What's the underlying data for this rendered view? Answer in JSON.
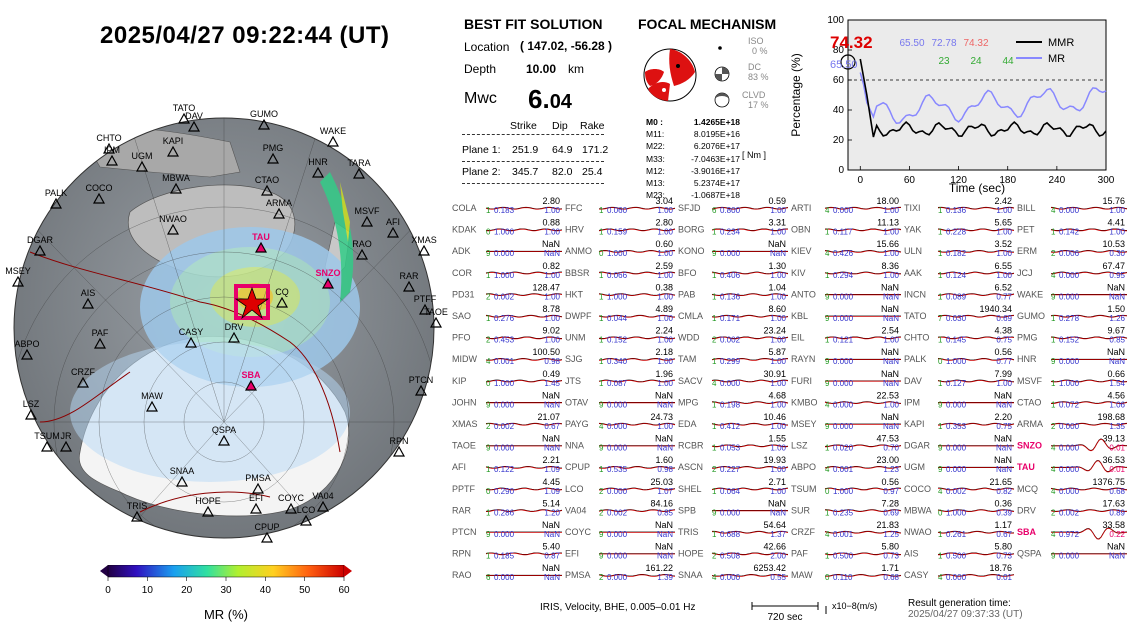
{
  "header": {
    "datetime": "2025/04/27  09:22:44 (UT)"
  },
  "solution": {
    "title": "BEST FIT SOLUTION",
    "location_label": "Location",
    "location_value": "( 147.02,  -56.28 )",
    "depth_label": "Depth",
    "depth_value": "10.00",
    "depth_unit": "km",
    "mw_label": "Mwc",
    "mw_int": "6.",
    "mw_dec": "04",
    "cols": [
      "Strike",
      "Dip",
      "Rake"
    ],
    "plane1": {
      "label": "Plane 1:",
      "strike": "251.9",
      "dip": "64.9",
      "rake": "171.2"
    },
    "plane2": {
      "label": "Plane 2:",
      "strike": "345.7",
      "dip": "82.0",
      "rake": "25.4"
    }
  },
  "focal": {
    "title": "FOCAL MECHANISM",
    "iso_label": "ISO",
    "iso_value": "0 %",
    "dc_label": "DC",
    "dc_value": "83 %",
    "clvd_label": "CLVD",
    "clvd_value": "17 %",
    "tensor": [
      {
        "k": "M0 :",
        "v": "1.4265E+18"
      },
      {
        "k": "M11:",
        "v": "8.0195E+16"
      },
      {
        "k": "M22:",
        "v": "6.2076E+17"
      },
      {
        "k": "M33:",
        "v": "-7.0463E+17"
      },
      {
        "k": "M12:",
        "v": "-3.9016E+17"
      },
      {
        "k": "M13:",
        "v": "5.2374E+17"
      },
      {
        "k": "M23:",
        "v": "-1.0687E+18"
      }
    ],
    "unit": "[ Nm ]"
  },
  "mr_chart": {
    "peak_value": "74.32",
    "left_value": "65.50",
    "stats": [
      {
        "top": "65.50",
        "bottom": "",
        "color": "#7777ee"
      },
      {
        "top": "72.78",
        "bottom": "23",
        "color": "#7777ee",
        "bcolor": "#33aa33"
      },
      {
        "top": "74.32",
        "bottom": "24",
        "color": "#ee6666",
        "bcolor": "#33aa33"
      },
      {
        "top": "",
        "bottom": "44",
        "color": "#ee6666",
        "bcolor": "#33aa33"
      }
    ],
    "legend": [
      {
        "name": "MMR",
        "color": "#000000"
      },
      {
        "name": "MR",
        "color": "#8888ff"
      }
    ],
    "xlabel": "Time (sec)",
    "ylabel": "Percentage (%)",
    "xticks": [
      "0",
      "60",
      "120",
      "180",
      "240",
      "300"
    ],
    "yticks": [
      "0",
      "20",
      "40",
      "60",
      "80",
      "100"
    ]
  },
  "map": {
    "stations": [
      {
        "n": "TATO",
        "c": "k"
      },
      {
        "n": "DAV",
        "c": "k"
      },
      {
        "n": "GUMO",
        "c": "k"
      },
      {
        "n": "CHTO",
        "c": "k"
      },
      {
        "n": "KAPI",
        "c": "k"
      },
      {
        "n": "IPM",
        "c": "k"
      },
      {
        "n": "UGM",
        "c": "k"
      },
      {
        "n": "WAKE",
        "c": "k"
      },
      {
        "n": "PMG",
        "c": "k"
      },
      {
        "n": "HNR",
        "c": "k"
      },
      {
        "n": "TARA",
        "c": "k"
      },
      {
        "n": "PALK",
        "c": "k"
      },
      {
        "n": "COCO",
        "c": "k"
      },
      {
        "n": "MBWA",
        "c": "k"
      },
      {
        "n": "CTAO",
        "c": "k"
      },
      {
        "n": "NWAO",
        "c": "k"
      },
      {
        "n": "ARMA",
        "c": "k"
      },
      {
        "n": "MSVF",
        "c": "k"
      },
      {
        "n": "AFI",
        "c": "k"
      },
      {
        "n": "DGAR",
        "c": "k"
      },
      {
        "n": "TAU",
        "c": "r"
      },
      {
        "n": "RAO",
        "c": "k"
      },
      {
        "n": "XMAS",
        "c": "k"
      },
      {
        "n": "SNZO",
        "c": "r"
      },
      {
        "n": "RAR",
        "c": "k"
      },
      {
        "n": "MSEY",
        "c": "k"
      },
      {
        "n": "AIS",
        "c": "k"
      },
      {
        "n": "CQ",
        "c": "k"
      },
      {
        "n": "PTFF",
        "c": "k"
      },
      {
        "n": "TAOE",
        "c": "k"
      },
      {
        "n": "PAF",
        "c": "k"
      },
      {
        "n": "CASY",
        "c": "k"
      },
      {
        "n": "DRV",
        "c": "k"
      },
      {
        "n": "ABPO",
        "c": "k"
      },
      {
        "n": "CRZF",
        "c": "k"
      },
      {
        "n": "SBA",
        "c": "r"
      },
      {
        "n": "MAW",
        "c": "k"
      },
      {
        "n": "LSZ",
        "c": "k"
      },
      {
        "n": "PTCN",
        "c": "k"
      },
      {
        "n": "QSPA",
        "c": "k"
      },
      {
        "n": "TSUM",
        "c": "k"
      },
      {
        "n": "JR",
        "c": "k"
      },
      {
        "n": "RPN",
        "c": "k"
      },
      {
        "n": "SNAA",
        "c": "k"
      },
      {
        "n": "PMSA",
        "c": "k"
      },
      {
        "n": "TRIS",
        "c": "k"
      },
      {
        "n": "HOPE",
        "c": "k"
      },
      {
        "n": "EFI",
        "c": "k"
      },
      {
        "n": "COYC",
        "c": "k"
      },
      {
        "n": "VA04",
        "c": "k"
      },
      {
        "n": "LCO",
        "c": "k"
      },
      {
        "n": "CPUP",
        "c": "k"
      }
    ]
  },
  "colorbar": {
    "ticks": [
      "0",
      "10",
      "20",
      "30",
      "40",
      "50",
      "60"
    ],
    "label": "MR (%)"
  },
  "waveforms": {
    "columns": [
      [
        [
          "COLA",
          "2.80",
          "1",
          "0.183",
          "1.00"
        ],
        [
          "KDAK",
          "0.88",
          "0",
          "1.000",
          "1.00"
        ],
        [
          "ADK",
          "NaN",
          "9",
          "0.000",
          "NaN"
        ],
        [
          "COR",
          "0.82",
          "1",
          "1.000",
          "1.00"
        ],
        [
          "PD31",
          "128.47",
          "2",
          "0.002",
          "1.00"
        ],
        [
          "SAO",
          "8.78",
          "1",
          "0.276",
          "1.00"
        ],
        [
          "PFO",
          "9.02",
          "2",
          "0.453",
          "1.00"
        ],
        [
          "MIDW",
          "100.50",
          "4",
          "0.001",
          "0.98"
        ],
        [
          "KIP",
          "0.49",
          "0",
          "1.000",
          "1.45"
        ],
        [
          "JOHN",
          "NaN",
          "9",
          "0.000",
          "NaN"
        ],
        [
          "XMAS",
          "21.07",
          "2",
          "0.002",
          "0.67"
        ],
        [
          "TAOE",
          "NaN",
          "9",
          "0.000",
          "NaN"
        ],
        [
          "AFI",
          "2.21",
          "1",
          "0.122",
          "1.09"
        ],
        [
          "PPTF",
          "4.45",
          "0",
          "0.290",
          "1.09"
        ],
        [
          "RAR",
          "5.14",
          "1",
          "0.286",
          "1.20"
        ],
        [
          "PTCN",
          "NaN",
          "9",
          "0.000",
          "NaN"
        ],
        [
          "RPN",
          "5.40",
          "1",
          "0.185",
          "0.87"
        ],
        [
          "RAO",
          "NaN",
          "6",
          "0.000",
          "NaN"
        ]
      ],
      [
        [
          "FFC",
          "3.04",
          "1",
          "0.060",
          "1.00"
        ],
        [
          "HRV",
          "2.80",
          "1",
          "0.159",
          "1.00"
        ],
        [
          "ANMO",
          "0.60",
          "0",
          "1.000",
          "1.00"
        ],
        [
          "BBSR",
          "2.59",
          "1",
          "0.066",
          "1.00"
        ],
        [
          "HKT",
          "0.38",
          "1",
          "1.000",
          "1.00"
        ],
        [
          "DWPF",
          "4.89",
          "1",
          "0.044",
          "1.00"
        ],
        [
          "UNM",
          "2.24",
          "1",
          "0.152",
          "1.00"
        ],
        [
          "SJG",
          "2.18",
          "1",
          "0.340",
          "1.00"
        ],
        [
          "JTS",
          "1.96",
          "1",
          "0.087",
          "1.00"
        ],
        [
          "OTAV",
          "NaN",
          "9",
          "0.000",
          "NaN"
        ],
        [
          "PAYG",
          "24.73",
          "4",
          "0.000",
          "1.00"
        ],
        [
          "NNA",
          "NaN",
          "9",
          "0.000",
          "NaN"
        ],
        [
          "CPUP",
          "1.60",
          "1",
          "0.535",
          "0.98"
        ],
        [
          "LCO",
          "25.03",
          "2",
          "0.000",
          "1.07"
        ],
        [
          "VA04",
          "84.16",
          "2",
          "0.002",
          "0.85"
        ],
        [
          "COYC",
          "NaN",
          "9",
          "0.000",
          "NaN"
        ],
        [
          "EFI",
          "NaN",
          "9",
          "0.000",
          "NaN"
        ],
        [
          "PMSA",
          "161.22",
          "2",
          "0.000",
          "1.39"
        ]
      ],
      [
        [
          "SFJD",
          "0.59",
          "6",
          "0.800",
          "1.00"
        ],
        [
          "BORG",
          "3.31",
          "1",
          "0.234",
          "1.00"
        ],
        [
          "KONO",
          "NaN",
          "9",
          "0.000",
          "NaN"
        ],
        [
          "BFO",
          "1.30",
          "1",
          "0.406",
          "1.00"
        ],
        [
          "PAB",
          "1.04",
          "1",
          "0.136",
          "1.00"
        ],
        [
          "CMLA",
          "8.60",
          "1",
          "0.171",
          "1.00"
        ],
        [
          "WDD",
          "23.24",
          "2",
          "0.002",
          "1.00"
        ],
        [
          "TAM",
          "5.87",
          "1",
          "0.299",
          "1.00"
        ],
        [
          "SACV",
          "30.91",
          "4",
          "0.000",
          "1.00"
        ],
        [
          "MPG",
          "4.68",
          "1",
          "0.198",
          "1.00"
        ],
        [
          "EDA",
          "10.46",
          "1",
          "0.412",
          "1.00"
        ],
        [
          "RCBR",
          "1.55",
          "1",
          "0.053",
          "1.00"
        ],
        [
          "ASCN",
          "19.93",
          "2",
          "0.227",
          "1.00"
        ],
        [
          "SHEL",
          "2.71",
          "1",
          "0.064",
          "1.00"
        ],
        [
          "SPB",
          "NaN",
          "9",
          "0.000",
          "NaN"
        ],
        [
          "TRIS",
          "54.64",
          "1",
          "0.688",
          "1.37"
        ],
        [
          "HOPE",
          "42.66",
          "2",
          "0.508",
          "2.00"
        ],
        [
          "SNAA",
          "6253.42",
          "4",
          "0.000",
          "0.55"
        ]
      ],
      [
        [
          "ARTI",
          "18.00",
          "4",
          "0.000",
          "1.00"
        ],
        [
          "OBN",
          "11.13",
          "1",
          "0.117",
          "1.00"
        ],
        [
          "KIEV",
          "15.66",
          "4",
          "0.426",
          "1.00"
        ],
        [
          "KIV",
          "8.36",
          "1",
          "0.294",
          "1.00"
        ],
        [
          "ANTO",
          "NaN",
          "9",
          "0.000",
          "NaN"
        ],
        [
          "KBL",
          "NaN",
          "9",
          "0.000",
          "NaN"
        ],
        [
          "EIL",
          "2.54",
          "1",
          "0.121",
          "1.00"
        ],
        [
          "RAYN",
          "NaN",
          "9",
          "0.000",
          "NaN"
        ],
        [
          "FURI",
          "NaN",
          "9",
          "0.000",
          "NaN"
        ],
        [
          "KMBO",
          "22.53",
          "4",
          "0.000",
          "1.00"
        ],
        [
          "MSEY",
          "NaN",
          "9",
          "0.000",
          "NaN"
        ],
        [
          "LSZ",
          "47.53",
          "1",
          "0.020",
          "0.70"
        ],
        [
          "ABPO",
          "23.00",
          "4",
          "0.001",
          "1.23"
        ],
        [
          "TSUM",
          "0.56",
          "0",
          "1.000",
          "0.97"
        ],
        [
          "SUR",
          "7.28",
          "1",
          "0.235",
          "0.69"
        ],
        [
          "CRZF",
          "21.83",
          "4",
          "0.001",
          "1.25"
        ],
        [
          "PAF",
          "5.80",
          "1",
          "0.500",
          "0.73"
        ],
        [
          "MAW",
          "1.71",
          "0",
          "0.110",
          "0.68"
        ]
      ],
      [
        [
          "TIXI",
          "2.42",
          "1",
          "0.136",
          "1.00"
        ],
        [
          "YAK",
          "5.65",
          "1",
          "0.228",
          "1.00"
        ],
        [
          "ULN",
          "3.52",
          "1",
          "0.182",
          "1.00"
        ],
        [
          "AAK",
          "6.55",
          "1",
          "0.124",
          "1.00"
        ],
        [
          "INCN",
          "6.52",
          "1",
          "0.089",
          "0.77"
        ],
        [
          "TATO",
          "1940.34",
          "7",
          "0.030",
          "0.69"
        ],
        [
          "CHTO",
          "4.38",
          "1",
          "0.145",
          "0.75"
        ],
        [
          "PALK",
          "0.56",
          "0",
          "1.000",
          "0.77"
        ],
        [
          "DAV",
          "7.99",
          "1",
          "0.127",
          "1.00"
        ],
        [
          "IPM",
          "NaN",
          "9",
          "0.000",
          "NaN"
        ],
        [
          "KAPI",
          "2.20",
          "1",
          "0.353",
          "0.75"
        ],
        [
          "DGAR",
          "NaN",
          "9",
          "0.000",
          "NaN"
        ],
        [
          "UGM",
          "NaN",
          "9",
          "0.000",
          "NaN"
        ],
        [
          "COCO",
          "21.65",
          "4",
          "0.002",
          "0.82"
        ],
        [
          "MBWA",
          "0.36",
          "0",
          "1.000",
          "0.39"
        ],
        [
          "NWAO",
          "1.17",
          "1",
          "0.261",
          "0.67"
        ],
        [
          "AIS",
          "5.80",
          "1",
          "0.500",
          "0.73"
        ],
        [
          "CASY",
          "18.76",
          "4",
          "0.000",
          "0.01"
        ]
      ],
      [
        [
          "BILL",
          "15.76",
          "4",
          "0.000",
          "1.00"
        ],
        [
          "PET",
          "4.41",
          "1",
          "0.142",
          "1.00"
        ],
        [
          "ERM",
          "10.53",
          "2",
          "0.006",
          "0.30"
        ],
        [
          "JCJ",
          "67.47",
          "4",
          "0.000",
          "0.95"
        ],
        [
          "WAKE",
          "NaN",
          "9",
          "0.000",
          "NaN"
        ],
        [
          "GUMO",
          "1.50",
          "1",
          "0.278",
          "1.26"
        ],
        [
          "PMG",
          "9.67",
          "1",
          "0.152",
          "0.85"
        ],
        [
          "HNR",
          "NaN",
          "9",
          "0.000",
          "NaN"
        ],
        [
          "MSVF",
          "0.66",
          "1",
          "1.000",
          "1.54"
        ],
        [
          "CTAO",
          "4.56",
          "1",
          "0.072",
          "1.06"
        ],
        [
          "ARMA",
          "198.68",
          "2",
          "0.000",
          "1.35"
        ],
        [
          "SNZO",
          "39.13",
          "4",
          "0.000",
          "0.01"
        ],
        [
          "TAU",
          "36.53",
          "4",
          "0.000",
          "0.01"
        ],
        [
          "MCQ",
          "1376.75",
          "4",
          "0.000",
          "0.68"
        ],
        [
          "DRV",
          "17.63",
          "2",
          "0.002",
          "0.89"
        ],
        [
          "SBA",
          "33.58",
          "4",
          "0.972",
          "0.22"
        ],
        [
          "QSPA",
          "NaN",
          "9",
          "0.000",
          "NaN"
        ]
      ]
    ],
    "highlight": [
      "SNZO",
      "TAU",
      "SBA"
    ],
    "footer_text": "IRIS, Velocity,   BHE, 0.005–0.01 Hz",
    "scale_label": "720 sec",
    "amp_unit": "x10−8(m/s)"
  },
  "result": {
    "label": "Result generation time:",
    "time": "2025/04/27 09:37:33 (UT)"
  },
  "colors": {
    "highlight": "#e8006a",
    "dark_red": "#8b0000",
    "blue": "#3333cc",
    "green": "#229922",
    "mr_blue": "#8888ff"
  }
}
